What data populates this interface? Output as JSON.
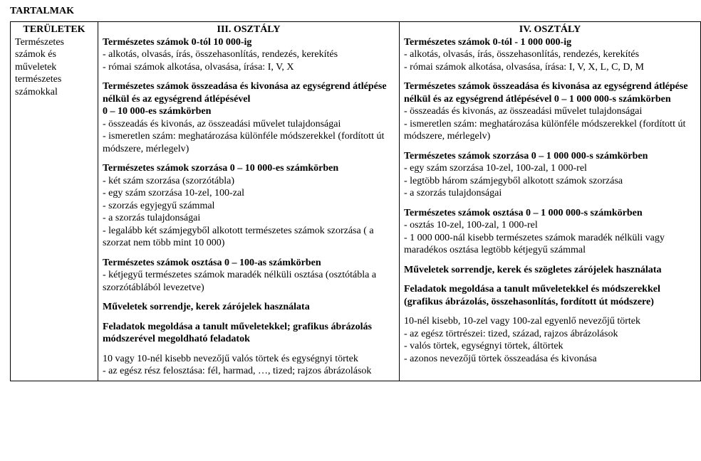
{
  "title": "TARTALMAK",
  "sidebar": {
    "header": "TERÜLETEK",
    "body_lines": [
      "Természetes",
      "számok és",
      "műveletek",
      "természetes",
      "számokkal"
    ]
  },
  "col3": {
    "header": "III. OSZTÁLY",
    "blocks": [
      {
        "lead": "Természetes számok 0-tól 10 000-ig",
        "lines": [
          "- alkotás, olvasás, írás, összehasonlítás, rendezés, kerekítés",
          "- római számok alkotása, olvasása, írása: I, V, X"
        ]
      },
      {
        "lead": "Természetes számok összeadása és kivonása az egységrend átlépése nélkül és az egységrend átlépésével",
        "lead2": "0 – 10 000-es számkörben",
        "lines": [
          "- összeadás és kivonás, az összeadási művelet tulajdonságai",
          "- ismeretlen szám: meghatározása különféle módszerekkel (fordított út módszere, mérlegelv)"
        ]
      },
      {
        "lead": "Természetes számok szorzása 0 – 10 000-es számkörben",
        "lines": [
          "- két szám szorzása (szorzótábla)",
          "- egy szám szorzása 10-zel, 100-zal",
          "- szorzás egyjegyű számmal",
          "- a szorzás tulajdonságai",
          "- legalább két számjegyből alkotott természetes számok szorzása ( a szorzat nem  több mint 10 000)"
        ]
      },
      {
        "lead": "Természetes számok osztása 0 – 100-as számkörben",
        "lines": [
          "- kétjegyű természetes számok maradék nélküli osztása (osztótábla a szorzótáblából levezetve)"
        ]
      },
      {
        "lead": "Műveletek sorrendje, kerek zárójelek használata",
        "lines": []
      },
      {
        "lead": "Feladatok megoldása a tanult műveletekkel; grafikus ábrázolás módszerével megoldható feladatok",
        "lines": []
      },
      {
        "lead": "",
        "lines": [
          "10 vagy 10-nél kisebb nevezőjű valós törtek és egységnyi törtek",
          "- az egész rész felosztása: fél, harmad, …, tized; rajzos ábrázolások"
        ]
      }
    ]
  },
  "col4": {
    "header": "IV. OSZTÁLY",
    "blocks": [
      {
        "lead": "Természetes számok 0-tól - 1 000 000-ig",
        "lines": [
          "- alkotás, olvasás, írás, összehasonlítás, rendezés, kerekítés",
          "- római számok alkotása, olvasása, írása: I, V, X, L, C, D, M"
        ]
      },
      {
        "lead": "Természetes számok összeadása és kivonása az egységrend átlépése nélkül és az egységrend átlépésével 0 – 1 000 000-s számkörben",
        "lines": [
          "- összeadás és kivonás, az összeadási művelet tulajdonságai",
          "- ismeretlen szám: meghatározása különféle módszerekkel (fordított út módszere, mérlegelv)"
        ]
      },
      {
        "lead": "Természetes számok szorzása 0 – 1 000 000-s számkörben",
        "lines": [
          "- egy szám szorzása 10-zel, 100-zal, 1 000-rel",
          "- legtöbb három számjegyből alkotott számok szorzása",
          "- a szorzás tulajdonságai"
        ]
      },
      {
        "lead": "Természetes számok osztása 0 – 1 000 000-s számkörben",
        "lines": [
          "- osztás 10-zel, 100-zal, 1 000-rel",
          "- 1 000 000-nál kisebb természetes számok maradék nélküli vagy maradékos osztása legtöbb kétjegyű számmal"
        ]
      },
      {
        "lead": "Műveletek sorrendje, kerek és szögletes zárójelek használata",
        "lines": []
      },
      {
        "lead": "Feladatok megoldása a tanult műveletekkel és módszerekkel (grafikus ábrázolás, összehasonlítás, fordított út  módszere)",
        "lines": []
      },
      {
        "lead": "",
        "lines": [
          "10-nél kisebb, 10-zel vagy 100-zal egyenlő nevezőjű törtek",
          "- az egész törtrészei: tized, század, rajzos ábrázolások",
          "- valós törtek, egységnyi törtek, áltörtek",
          "- azonos nevezőjű törtek összeadása és kivonása"
        ]
      }
    ]
  }
}
